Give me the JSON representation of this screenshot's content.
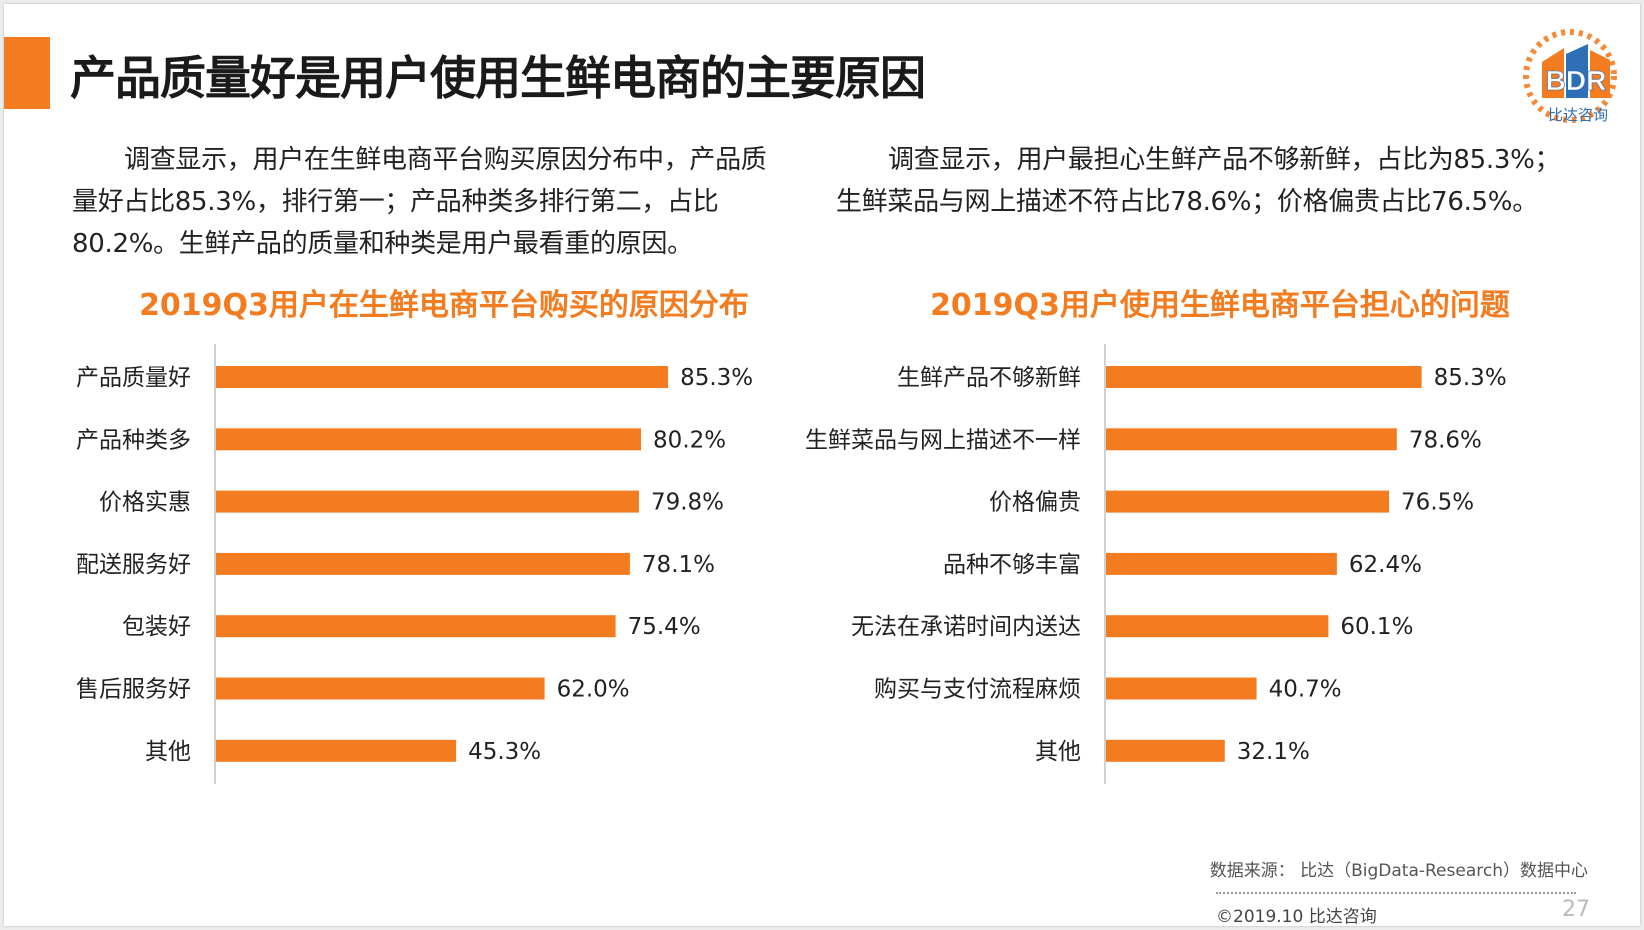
{
  "slide": {
    "title": "产品质量好是用户使用生鲜电商的主要原因",
    "logo_text": "BDR",
    "logo_sub": "比达咨询",
    "left_paragraph": "调查显示，用户在生鲜电商平台购买原因分布中，产品质量好占比85.3%，排行第一；产品种类多排行第二，占比80.2%。生鲜产品的质量和种类是用户最看重的原因。",
    "right_paragraph": "调查显示，用户最担心生鲜产品不够新鲜，占比为85.3%；生鲜菜品与网上描述不符占比78.6%；价格偏贵占比76.5%。",
    "footer_source": "数据来源： 比达（BigData-Research）数据中心",
    "footer_copy": "©2019.10 比达咨询",
    "page_number": "27"
  },
  "colors": {
    "accent": "#f47c20",
    "bar": "#f47c20",
    "logo_blue": "#2f6fb6"
  },
  "chart_data": [
    {
      "type": "bar",
      "orientation": "horizontal",
      "title": "2019Q3用户在生鲜电商平台购买的原因分布",
      "categories": [
        "产品质量好",
        "产品种类多",
        "价格实惠",
        "配送服务好",
        "包装好",
        "售后服务好",
        "其他"
      ],
      "values": [
        85.3,
        80.2,
        79.8,
        78.1,
        75.4,
        62.0,
        45.3
      ],
      "value_labels": [
        "85.3%",
        "80.2%",
        "79.8%",
        "78.1%",
        "75.4%",
        "62.0%",
        "45.3%"
      ],
      "unit": "%",
      "xlim": [
        0,
        100
      ],
      "grid": false,
      "legend": "none"
    },
    {
      "type": "bar",
      "orientation": "horizontal",
      "title": "2019Q3用户使用生鲜电商平台担心的问题",
      "categories": [
        "生鲜产品不够新鲜",
        "生鲜菜品与网上描述不一样",
        "价格偏贵",
        "品种不够丰富",
        "无法在承诺时间内送达",
        "购买与支付流程麻烦",
        "其他"
      ],
      "values": [
        85.3,
        78.6,
        76.5,
        62.4,
        60.1,
        40.7,
        32.1
      ],
      "value_labels": [
        "85.3%",
        "78.6%",
        "76.5%",
        "62.4%",
        "60.1%",
        "40.7%",
        "32.1%"
      ],
      "unit": "%",
      "xlim": [
        0,
        100
      ],
      "grid": false,
      "legend": "none"
    }
  ]
}
